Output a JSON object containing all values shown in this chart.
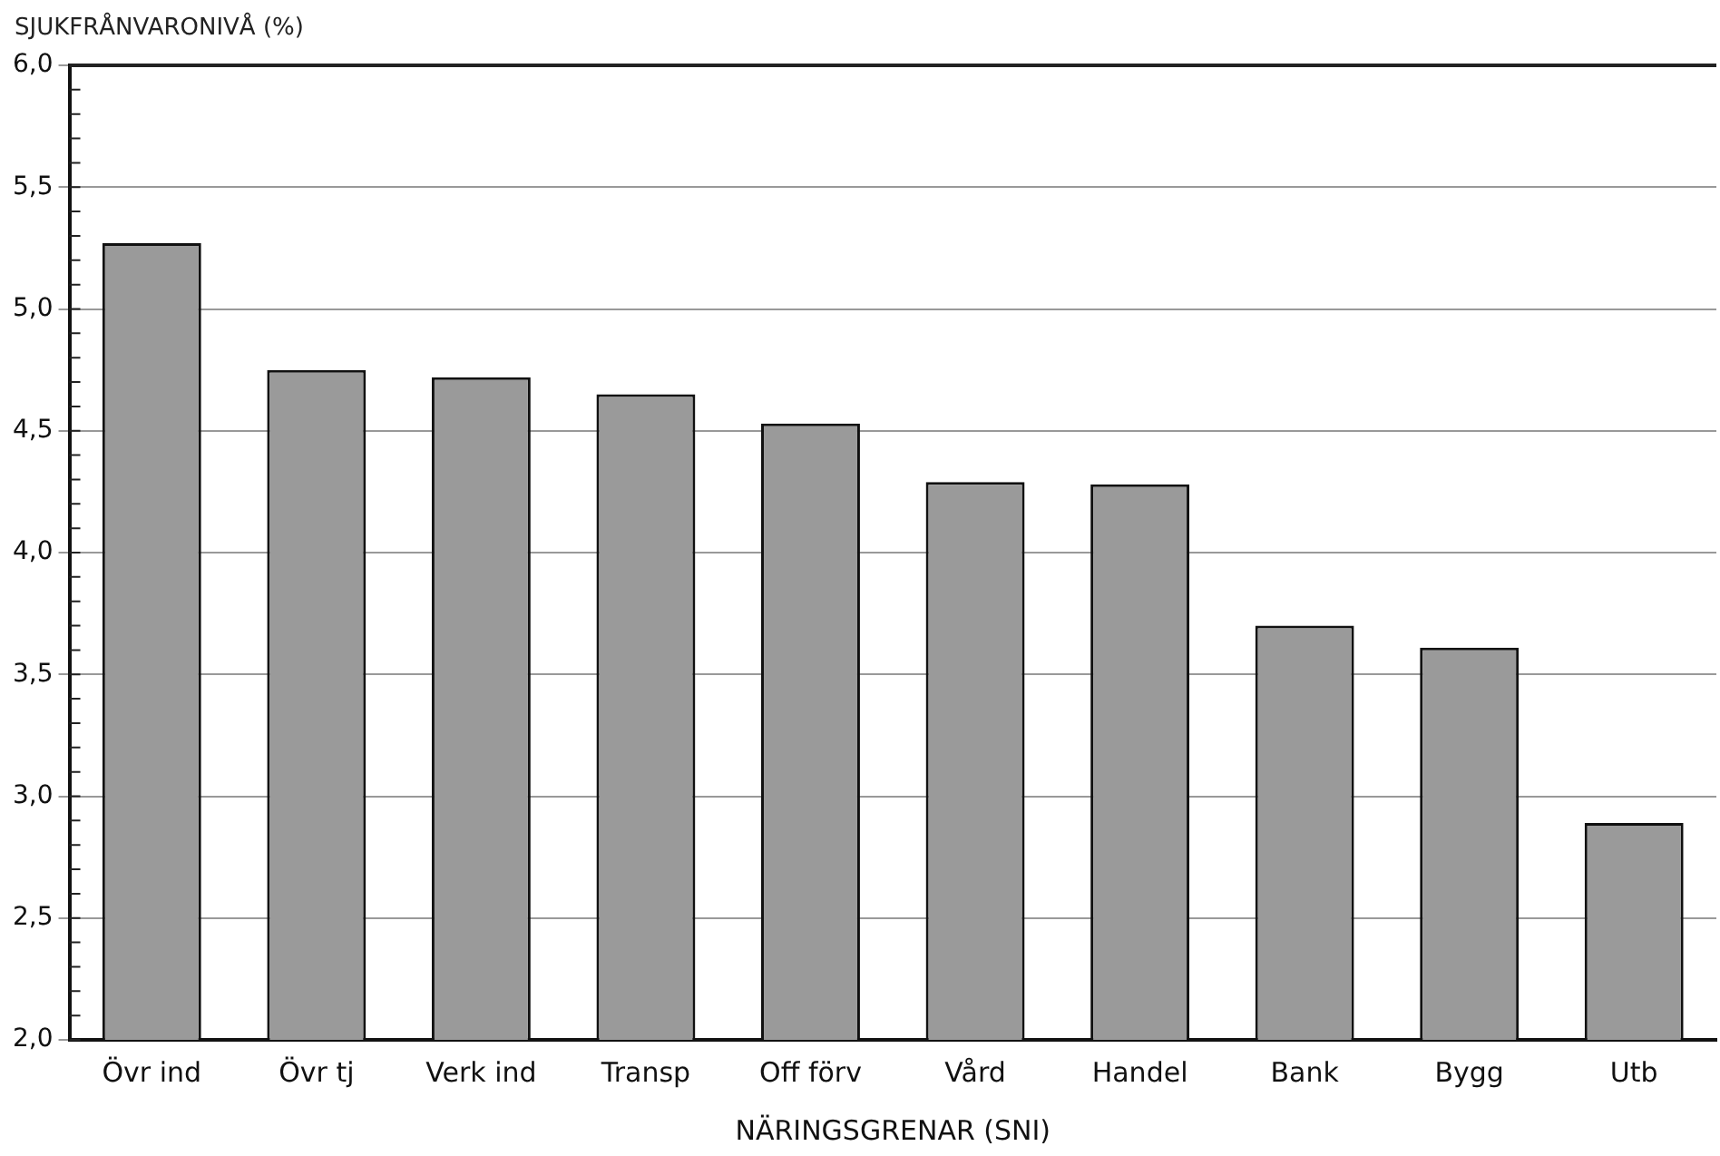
{
  "chart_data": {
    "type": "bar",
    "ylabel": "SJUKFRÅNVARONIVÅ (%)",
    "xlabel": "NÄRINGSGRENAR (SNI)",
    "categories": [
      "Övr ind",
      "Övr tj",
      "Verk ind",
      "Transp",
      "Off förv",
      "Vård",
      "Handel",
      "Bank",
      "Bygg",
      "Utb"
    ],
    "values": [
      5.27,
      4.75,
      4.72,
      4.65,
      4.53,
      4.29,
      4.28,
      3.7,
      3.61,
      2.89
    ],
    "color": "#9a9a9a",
    "ylim": [
      2,
      6
    ],
    "yticks": [
      {
        "value": 2,
        "label": "2,0"
      },
      {
        "value": 2.5,
        "label": "2,5"
      },
      {
        "value": 3,
        "label": "3,0"
      },
      {
        "value": 3.5,
        "label": "3,5"
      },
      {
        "value": 4,
        "label": "4,0"
      },
      {
        "value": 4.5,
        "label": "4,5"
      },
      {
        "value": 5,
        "label": "5,0"
      },
      {
        "value": 5.5,
        "label": "5,5"
      },
      {
        "value": 6,
        "label": "6,0"
      }
    ],
    "grid": "y",
    "legend": false
  }
}
